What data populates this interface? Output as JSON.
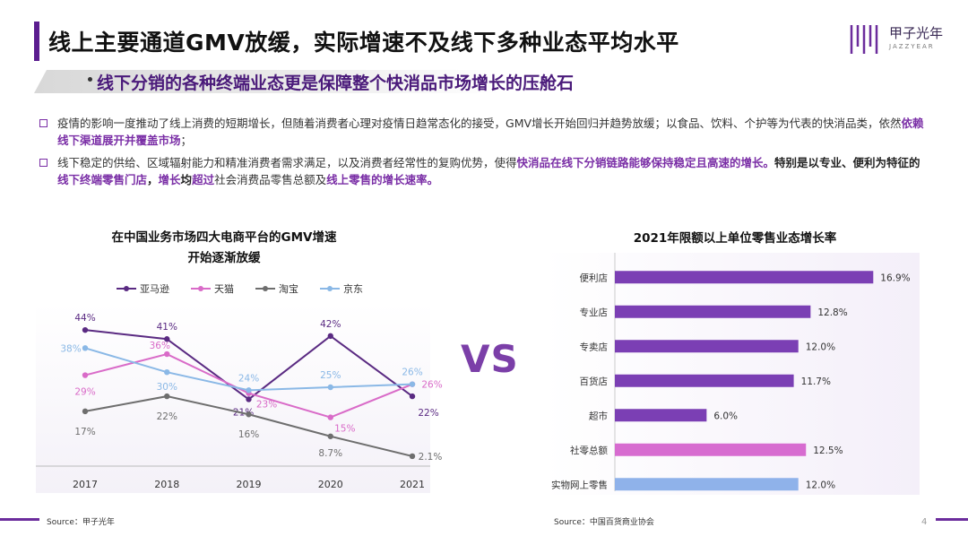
{
  "header": {
    "title": "线上主要通道GMV放缓，实际增速不及线下多种业态平均水平",
    "subtitle": "线下分销的各种终端业态更是保障整个快消品市场增长的压舱石",
    "logo_text": "甲子光年",
    "logo_sub": "JAZZYEAR"
  },
  "body": {
    "p1": {
      "a": "疫情的影响一度推动了线上消费的短期增长，但随着消费者心理对疫情日趋常态化的接受，GMV增长开始回归并趋势放缓；以食品、饮料、个护等为代表的快消品类，依然",
      "b": "依赖线下渠道展开并覆盖市场",
      "c": "；"
    },
    "p2": {
      "a": "线下稳定的供给、区域辐射能力和精准消费者需求满足，以及消费者经常性的复购优势，使得",
      "b": "快消品在线下分销链路能够保持稳定且高速的增长。",
      "c": "特别是以专业、便利为特征的",
      "d": "线下终端零售门店",
      "e": "，",
      "f": "增长",
      "g": "均",
      "h": "超过",
      "i": "社会消费品零售总额及",
      "j": "线上零售的增长速率。"
    }
  },
  "vs_label": "VS",
  "footer": {
    "source_left": "Source：甲子光年",
    "source_right": "Source：中国百货商业协会",
    "page": "4"
  },
  "colors": {
    "amazon": "#5a2a82",
    "tmall": "#d96bc8",
    "taobao": "#6e6e6e",
    "jd": "#8ab8e6",
    "bar_main": "#7b3fb4",
    "bar_pink": "#d76cd0",
    "bar_blue": "#8fb2ea"
  },
  "chart_data": [
    {
      "type": "line",
      "title_line1": "在中国业务市场四大电商平台的GMV增速",
      "title_line2": "开始逐渐放缓",
      "x": [
        "2017",
        "2018",
        "2019",
        "2020",
        "2021"
      ],
      "ylim": [
        0,
        50
      ],
      "series": [
        {
          "name": "亚马逊",
          "color_key": "amazon",
          "values": [
            44,
            41,
            21,
            42,
            22
          ],
          "labels": [
            "44%",
            "41%",
            "21%",
            "42%",
            "22%"
          ]
        },
        {
          "name": "天猫",
          "color_key": "tmall",
          "values": [
            29,
            36,
            23,
            15,
            26
          ],
          "labels": [
            "29%",
            "36%",
            "23%",
            "15%",
            "26%"
          ]
        },
        {
          "name": "淘宝",
          "color_key": "taobao",
          "values": [
            17,
            22,
            16,
            8.7,
            2.1
          ],
          "labels": [
            "17%",
            "22%",
            "16%",
            "8.7%",
            "2.1%"
          ]
        },
        {
          "name": "京东",
          "color_key": "jd",
          "values": [
            38,
            30,
            24,
            25,
            26
          ],
          "labels": [
            "38%",
            "30%",
            "24%",
            "25%",
            "26%"
          ]
        }
      ]
    },
    {
      "type": "bar",
      "orientation": "horizontal",
      "title": "2021年限额以上单位零售业态增长率",
      "categories": [
        "便利店",
        "专业店",
        "专卖店",
        "百货店",
        "超市",
        "社零总额",
        "实物网上零售"
      ],
      "values": [
        16.9,
        12.8,
        12.0,
        11.7,
        6.0,
        12.5,
        12.0
      ],
      "labels": [
        "16.9%",
        "12.8%",
        "12.0%",
        "11.7%",
        "6.0%",
        "12.5%",
        "12.0%"
      ],
      "color_keys": [
        "bar_main",
        "bar_main",
        "bar_main",
        "bar_main",
        "bar_main",
        "bar_pink",
        "bar_blue"
      ]
    }
  ]
}
